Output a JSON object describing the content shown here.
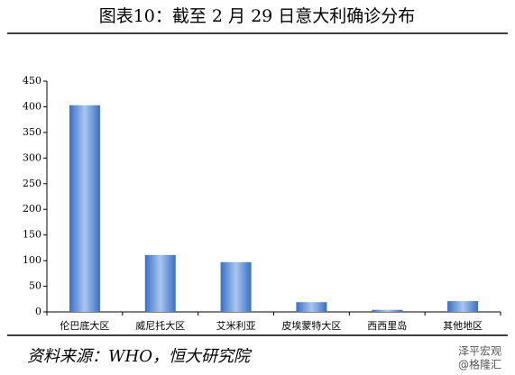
{
  "chart_data": {
    "type": "bar",
    "title": "图表10：截至 2 月 29 日意大利确诊分布",
    "categories": [
      "伦巴底大区",
      "威尼托大区",
      "艾米利亚",
      "皮埃蒙特大区",
      "西西里岛",
      "其他地区"
    ],
    "values": [
      403,
      111,
      97,
      19,
      4,
      21
    ],
    "color": "#3a6fc4",
    "ylim": [
      0,
      450
    ],
    "yticks": [
      0,
      50,
      100,
      150,
      200,
      250,
      300,
      350,
      400,
      450
    ],
    "source": "资料来源：WHO，恒大研究院",
    "watermarks": [
      "泽平宏观",
      "@格隆汇"
    ]
  }
}
